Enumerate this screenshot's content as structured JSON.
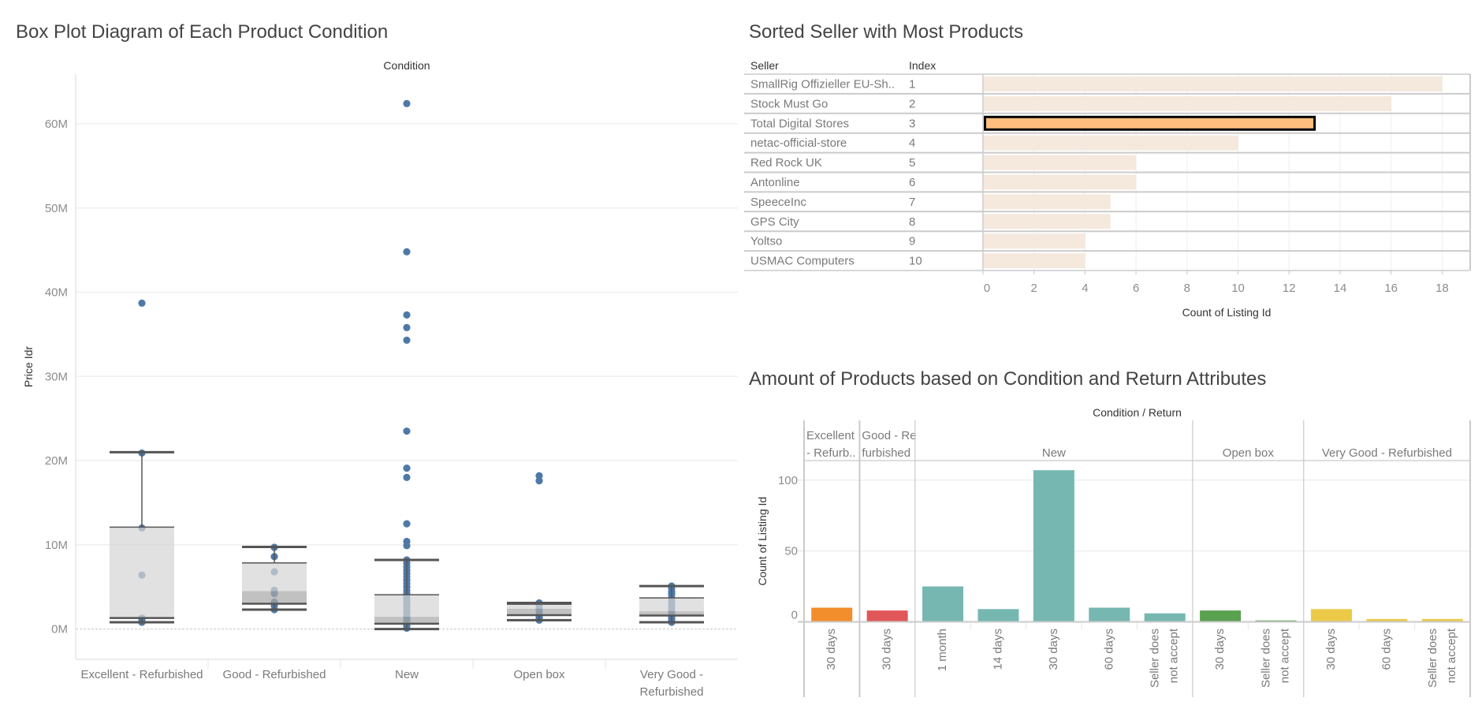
{
  "chart_data": [
    {
      "type": "scatter",
      "overlay": "box-plot",
      "title": "Box Plot Diagram of Each Product Condition",
      "column_header": "Condition",
      "xlabel": "",
      "ylabel": "Price Idr",
      "y_unit": "millions (M)",
      "ylim": [
        -3.6,
        65.9
      ],
      "yticks": [
        0,
        10,
        20,
        30,
        40,
        50,
        60
      ],
      "ytick_labels": [
        "0M",
        "10M",
        "20M",
        "30M",
        "40M",
        "50M",
        "60M"
      ],
      "grid": true,
      "legend": "none",
      "categories": [
        "Excellent - Refurbished",
        "Good - Refurbished",
        "New",
        "Open box",
        "Very Good - Refurbished"
      ],
      "category_label_lines": [
        [
          "Excellent - Refurbished"
        ],
        [
          "Good - Refurbished"
        ],
        [
          "New"
        ],
        [
          "Open box"
        ],
        [
          "Very Good -",
          "Refurbished"
        ]
      ],
      "point_color": "#4E79A7",
      "box_upper_color": "#D6D6D6",
      "box_lower_color": "#A9A9A9",
      "series": [
        {
          "name": "Excellent - Refurbished",
          "values": [
            38.7,
            20.9,
            12.0,
            6.4,
            1.3,
            1.0,
            0.8
          ]
        },
        {
          "name": "Good - Refurbished",
          "values": [
            9.7,
            8.6,
            6.8,
            4.6,
            4.2,
            3.2,
            2.8,
            2.3
          ]
        },
        {
          "name": "New",
          "values": [
            62.4,
            44.8,
            37.3,
            35.8,
            34.3,
            23.5,
            19.1,
            18.0,
            12.5,
            10.4,
            9.9,
            8.2,
            7.8,
            7.4,
            7.0,
            6.6,
            6.2,
            5.8,
            5.4,
            5.0,
            4.6,
            4.2,
            3.8,
            3.4,
            3.0,
            2.6,
            2.2,
            1.9,
            1.6,
            1.3,
            1.0,
            0.7,
            0.4,
            0.1
          ]
        },
        {
          "name": "Open box",
          "values": [
            18.2,
            17.6,
            3.1,
            2.8,
            2.4,
            2.0,
            1.6,
            1.3,
            1.05
          ]
        },
        {
          "name": "Very Good - Refurbished",
          "values": [
            5.1,
            4.8,
            4.4,
            4.1,
            3.7,
            3.3,
            2.9,
            2.5,
            2.1,
            1.7,
            1.3,
            1.0,
            0.8
          ]
        }
      ],
      "boxes": [
        {
          "category": "Excellent - Refurbished",
          "lower_whisker": 0.8,
          "q1": 1.3,
          "median": 1.35,
          "q3": 12.1,
          "upper_whisker": 21.0
        },
        {
          "category": "Good - Refurbished",
          "lower_whisker": 2.3,
          "q1": 3.0,
          "median": 4.5,
          "q3": 7.85,
          "upper_whisker": 9.75
        },
        {
          "category": "New",
          "lower_whisker": 0.0,
          "q1": 0.63,
          "median": 1.45,
          "q3": 4.07,
          "upper_whisker": 8.2
        },
        {
          "category": "Open box",
          "lower_whisker": 1.05,
          "q1": 1.64,
          "median": 2.4,
          "q3": 2.95,
          "upper_whisker": 3.1
        },
        {
          "category": "Very Good - Refurbished",
          "lower_whisker": 0.8,
          "q1": 1.6,
          "median": 2.1,
          "q3": 3.7,
          "upper_whisker": 5.1
        }
      ]
    },
    {
      "type": "bar",
      "orientation": "horizontal",
      "title": "Sorted Seller with Most Products",
      "columns": [
        "Seller",
        "Index"
      ],
      "categories": [
        "SmallRig Offizieller EU-Sh..",
        "Stock Must Go",
        "Total Digital Stores",
        "netac-official-store",
        "Red Rock UK",
        "Antonline",
        "SpeeceInc",
        "GPS City",
        "Yoltso",
        "USMAC Computers"
      ],
      "index": [
        1,
        2,
        3,
        4,
        5,
        6,
        7,
        8,
        9,
        10
      ],
      "values": [
        18,
        16,
        13,
        10,
        6,
        6,
        5,
        5,
        4,
        4
      ],
      "xlabel": "Count of Listing Id",
      "xlim": [
        0,
        19.1
      ],
      "xticks": [
        0,
        2,
        4,
        6,
        8,
        10,
        12,
        14,
        16,
        18
      ],
      "xtick_labels": [
        "0",
        "2",
        "4",
        "6",
        "8",
        "10",
        "12",
        "14",
        "16",
        "18"
      ],
      "grid": true,
      "legend": "none",
      "highlighted": "Total Digital Stores",
      "bar_color": "#F5E8DD",
      "highlight_color": "#FFBE7D"
    },
    {
      "type": "bar",
      "title": "Amount of Products based on Condition and Return Attributes",
      "header": "Condition / Return",
      "xlabel": "",
      "ylabel": "Count of Listing Id",
      "ylim": [
        0,
        113.8
      ],
      "yticks": [
        0,
        50,
        100
      ],
      "ytick_labels": [
        "0",
        "50",
        "100"
      ],
      "grid": true,
      "legend": "none",
      "groups": [
        {
          "condition": "Excellent - Refurbished",
          "header_lines": [
            "Excellent",
            "- Refurb.."
          ],
          "color": "#F28E2B",
          "bars": [
            {
              "return": "30 days",
              "label_lines": [
                "30 days"
              ],
              "value": 10
            }
          ]
        },
        {
          "condition": "Good - Refurbished",
          "header_lines": [
            "Good - Re",
            "furbished"
          ],
          "color": "#E15759",
          "bars": [
            {
              "return": "30 days",
              "label_lines": [
                "30 days"
              ],
              "value": 8
            }
          ]
        },
        {
          "condition": "New",
          "header_lines": [
            "New"
          ],
          "color": "#76B7B2",
          "bars": [
            {
              "return": "1 month",
              "label_lines": [
                "1 month"
              ],
              "value": 25
            },
            {
              "return": "14 days",
              "label_lines": [
                "14 days"
              ],
              "value": 9
            },
            {
              "return": "30 days",
              "label_lines": [
                "30 days"
              ],
              "value": 107
            },
            {
              "return": "60 days",
              "label_lines": [
                "60 days"
              ],
              "value": 10
            },
            {
              "return": "Seller does not accept",
              "label_lines": [
                "Seller does",
                "not accept"
              ],
              "value": 6
            }
          ]
        },
        {
          "condition": "Open box",
          "header_lines": [
            "Open box"
          ],
          "color": "#59A14F",
          "bars": [
            {
              "return": "30 days",
              "label_lines": [
                "30 days"
              ],
              "value": 8
            },
            {
              "return": "Seller does not accept",
              "label_lines": [
                "Seller does",
                "not accept"
              ],
              "value": 1
            }
          ]
        },
        {
          "condition": "Very Good - Refurbished",
          "header_lines": [
            "Very Good - Refurbished"
          ],
          "color": "#EDC948",
          "bars": [
            {
              "return": "30 days",
              "label_lines": [
                "30 days"
              ],
              "value": 9
            },
            {
              "return": "60 days",
              "label_lines": [
                "60 days"
              ],
              "value": 2
            },
            {
              "return": "Seller does not accept",
              "label_lines": [
                "Seller does",
                "not accept"
              ],
              "value": 2
            }
          ]
        }
      ]
    }
  ]
}
